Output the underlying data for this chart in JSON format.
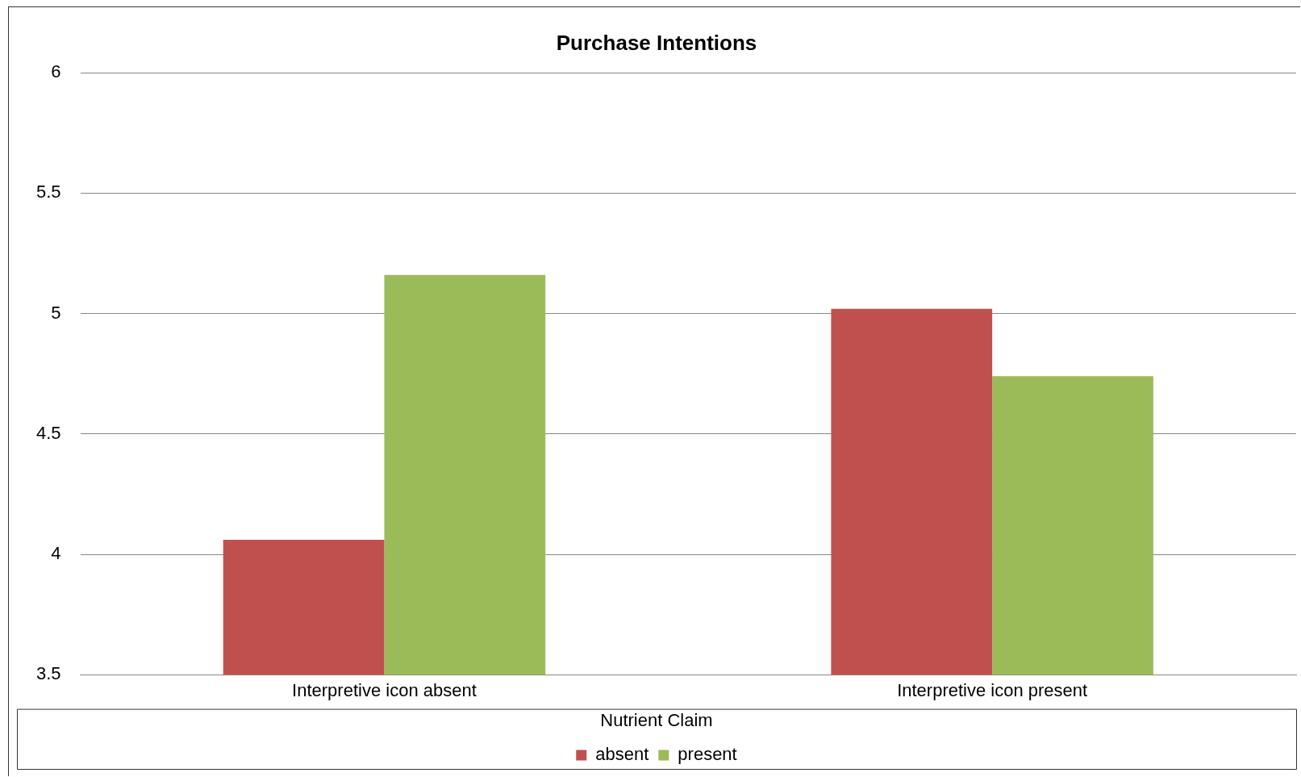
{
  "chart_data": {
    "type": "bar",
    "title": "Purchase Intentions",
    "categories": [
      "Interpretive icon absent",
      "Interpretive icon present"
    ],
    "legend_title": "Nutrient Claim",
    "series": [
      {
        "name": "absent",
        "color": "#c0504d",
        "values": [
          4.06,
          5.02
        ]
      },
      {
        "name": "present",
        "color": "#9bbb59",
        "values": [
          5.16,
          4.74
        ]
      }
    ],
    "ylim": [
      3.5,
      6
    ],
    "yticks": [
      3.5,
      4,
      4.5,
      5,
      5.5,
      6
    ],
    "grid": "y",
    "legend": "bottom"
  }
}
